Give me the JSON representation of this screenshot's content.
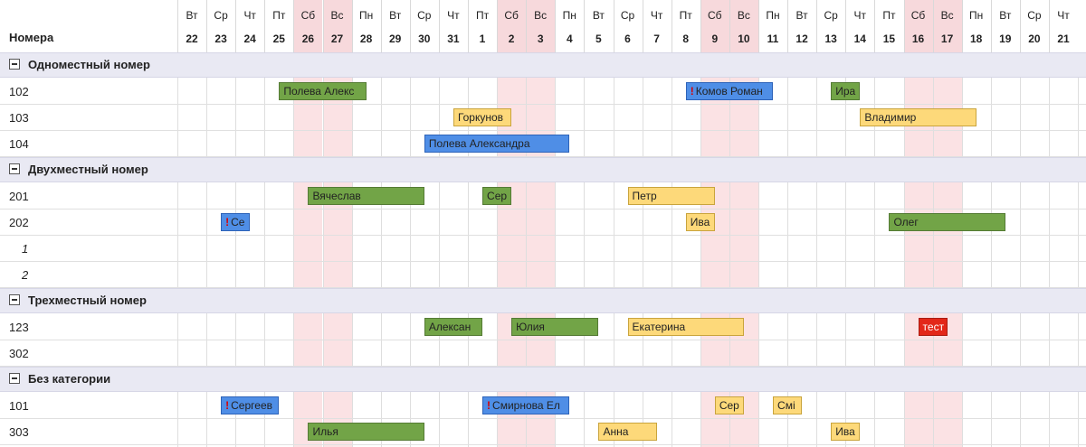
{
  "header": {
    "label": "Номера",
    "days": [
      {
        "d": "Вт",
        "n": "22",
        "w": false
      },
      {
        "d": "Ср",
        "n": "23",
        "w": false
      },
      {
        "d": "Чт",
        "n": "24",
        "w": false
      },
      {
        "d": "Пт",
        "n": "25",
        "w": false
      },
      {
        "d": "Сб",
        "n": "26",
        "w": true
      },
      {
        "d": "Вс",
        "n": "27",
        "w": true
      },
      {
        "d": "Пн",
        "n": "28",
        "w": false
      },
      {
        "d": "Вт",
        "n": "29",
        "w": false
      },
      {
        "d": "Ср",
        "n": "30",
        "w": false
      },
      {
        "d": "Чт",
        "n": "31",
        "w": false
      },
      {
        "d": "Пт",
        "n": "1",
        "w": false
      },
      {
        "d": "Сб",
        "n": "2",
        "w": true
      },
      {
        "d": "Вс",
        "n": "3",
        "w": true
      },
      {
        "d": "Пн",
        "n": "4",
        "w": false
      },
      {
        "d": "Вт",
        "n": "5",
        "w": false
      },
      {
        "d": "Ср",
        "n": "6",
        "w": false
      },
      {
        "d": "Чт",
        "n": "7",
        "w": false
      },
      {
        "d": "Пт",
        "n": "8",
        "w": false
      },
      {
        "d": "Сб",
        "n": "9",
        "w": true
      },
      {
        "d": "Вс",
        "n": "10",
        "w": true
      },
      {
        "d": "Пн",
        "n": "11",
        "w": false
      },
      {
        "d": "Вт",
        "n": "12",
        "w": false
      },
      {
        "d": "Ср",
        "n": "13",
        "w": false
      },
      {
        "d": "Чт",
        "n": "14",
        "w": false
      },
      {
        "d": "Пт",
        "n": "15",
        "w": false
      },
      {
        "d": "Сб",
        "n": "16",
        "w": true
      },
      {
        "d": "Вс",
        "n": "17",
        "w": true
      },
      {
        "d": "Пн",
        "n": "18",
        "w": false
      },
      {
        "d": "Вт",
        "n": "19",
        "w": false
      },
      {
        "d": "Ср",
        "n": "20",
        "w": false
      },
      {
        "d": "Чт",
        "n": "21",
        "w": false
      }
    ]
  },
  "groups": [
    {
      "name": "Одноместный номер",
      "rows": [
        {
          "label": "102",
          "bookings": [
            {
              "text": "Полева Алекс",
              "start": "25",
              "end": "28",
              "color": "green"
            },
            {
              "text": "Комов Роман",
              "start": "8",
              "end": "11",
              "color": "blue",
              "flag": "!"
            },
            {
              "text": "Ира",
              "start": "13",
              "end": "14",
              "color": "green"
            }
          ]
        },
        {
          "label": "103",
          "bookings": [
            {
              "text": "Горкунов",
              "start": "31",
              "end": "2",
              "color": "yellow"
            },
            {
              "text": "Владимир",
              "start": "14",
              "end": "18",
              "color": "yellow"
            }
          ]
        },
        {
          "label": "104",
          "bookings": [
            {
              "text": "Полева Александра",
              "start": "30",
              "end": "4",
              "color": "blue"
            }
          ]
        }
      ]
    },
    {
      "name": "Двухместный номер",
      "rows": [
        {
          "label": "201",
          "bookings": [
            {
              "text": "Вячеслав",
              "start": "26",
              "end": "30",
              "color": "green"
            },
            {
              "text": "Сер",
              "start": "1",
              "end": "2",
              "color": "green"
            },
            {
              "text": "Петр",
              "start": "6",
              "end": "9",
              "color": "yellow"
            }
          ]
        },
        {
          "label": "202",
          "bookings": [
            {
              "text": "Се",
              "start": "23",
              "end": "24",
              "color": "blue",
              "flag": "!"
            },
            {
              "text": "Ива",
              "start": "8",
              "end": "9",
              "color": "yellow"
            },
            {
              "text": "Олег",
              "start": "15",
              "end": "19",
              "color": "green"
            }
          ]
        },
        {
          "label": "1",
          "sub": true,
          "bookings": []
        },
        {
          "label": "2",
          "sub": true,
          "bookings": []
        }
      ]
    },
    {
      "name": "Трехместный номер",
      "rows": [
        {
          "label": "123",
          "bookings": [
            {
              "text": "Алексан",
              "start": "30",
              "end": "1",
              "color": "green"
            },
            {
              "text": "Юлия",
              "start": "2",
              "end": "5",
              "color": "green"
            },
            {
              "text": "Екатерина",
              "start": "6",
              "end": "10",
              "color": "yellow"
            },
            {
              "text": "тест",
              "start": "16",
              "end": "17",
              "color": "red"
            }
          ]
        },
        {
          "label": "302",
          "bookings": []
        }
      ]
    },
    {
      "name": "Без категории",
      "rows": [
        {
          "label": "101",
          "bookings": [
            {
              "text": "Сергеев",
              "start": "23",
              "end": "25",
              "color": "blue",
              "flag": "!"
            },
            {
              "text": "Смирнова Ел",
              "start": "1",
              "end": "4",
              "color": "blue",
              "flag": "!"
            },
            {
              "text": "Сер",
              "start": "9",
              "end": "10",
              "color": "yellow"
            },
            {
              "text": "Смі",
              "start": "11",
              "end": "12",
              "color": "yellow"
            }
          ]
        },
        {
          "label": "303",
          "bookings": [
            {
              "text": "Илья",
              "start": "26",
              "end": "30",
              "color": "green"
            },
            {
              "text": "Анна",
              "start": "5",
              "end": "7",
              "color": "yellow"
            },
            {
              "text": "Ива",
              "start": "13",
              "end": "14",
              "color": "yellow"
            }
          ]
        }
      ]
    }
  ]
}
